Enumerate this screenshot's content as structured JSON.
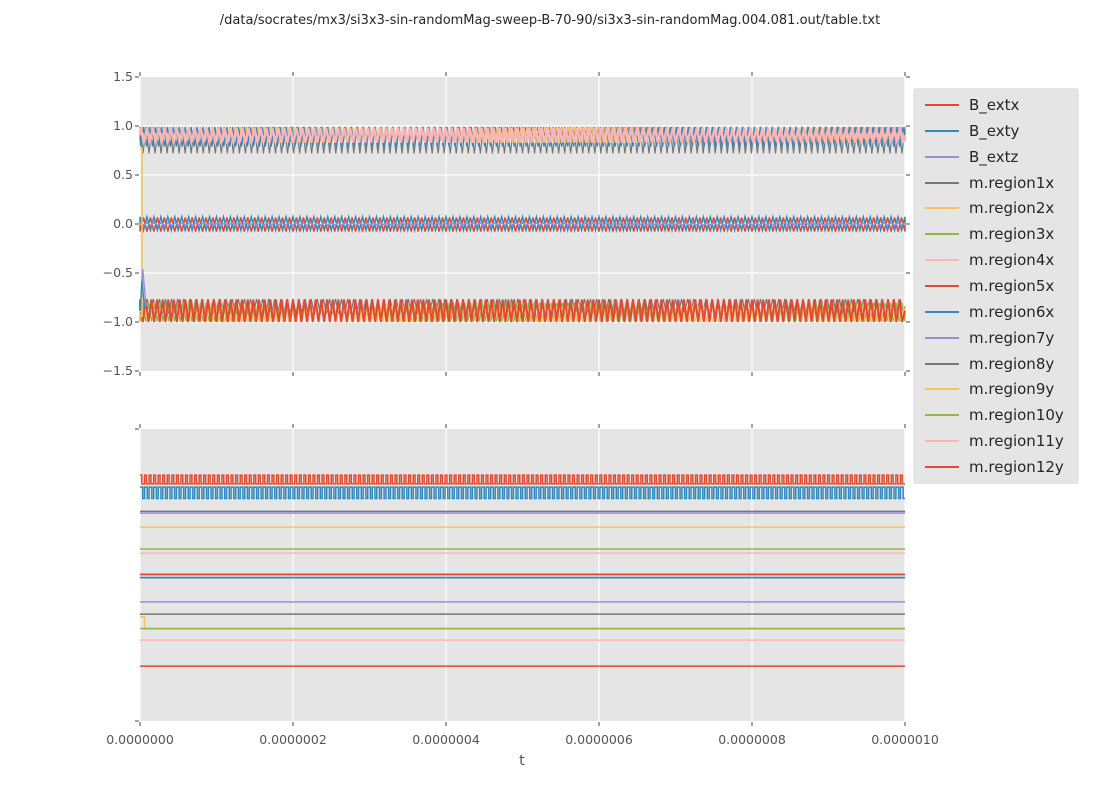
{
  "title": "/data/socrates/mx3/si3x3-sin-randomMag-sweep-B-70-90/si3x3-sin-randomMag.004.081.out/table.txt",
  "xlabel": "t",
  "style_colors": {
    "plot_background": "#E5E5E5",
    "grid": "#FFFFFF",
    "tick": "#555555",
    "text": "#262626",
    "palette": {
      "red": "#E24A33",
      "blue": "#348ABD",
      "purple": "#988ED5",
      "gray": "#777777",
      "orange": "#FBC15E",
      "green": "#8EBA42",
      "pink": "#FFB5B8"
    }
  },
  "legend": {
    "items": [
      {
        "label": "B_extx",
        "color": "#E24A33"
      },
      {
        "label": "B_exty",
        "color": "#348ABD"
      },
      {
        "label": "B_extz",
        "color": "#988ED5"
      },
      {
        "label": "m.region1x",
        "color": "#777777"
      },
      {
        "label": "m.region2x",
        "color": "#FBC15E"
      },
      {
        "label": "m.region3x",
        "color": "#8EBA42"
      },
      {
        "label": "m.region4x",
        "color": "#FFB5B8"
      },
      {
        "label": "m.region5x",
        "color": "#E24A33"
      },
      {
        "label": "m.region6x",
        "color": "#348ABD"
      },
      {
        "label": "m.region7y",
        "color": "#988ED5"
      },
      {
        "label": "m.region8y",
        "color": "#777777"
      },
      {
        "label": "m.region9y",
        "color": "#FBC15E"
      },
      {
        "label": "m.region10y",
        "color": "#8EBA42"
      },
      {
        "label": "m.region11y",
        "color": "#FFB5B8"
      },
      {
        "label": "m.region12y",
        "color": "#E24A33"
      }
    ]
  },
  "chart_data": [
    {
      "type": "line",
      "subplot": "top",
      "xlim": [
        0,
        1e-06
      ],
      "ylim": [
        -1.5,
        1.5
      ],
      "xticks": [
        "0.0000000",
        "0.0000002",
        "0.0000004",
        "0.0000006",
        "0.0000008",
        "0.0000010"
      ],
      "yticks": [
        "1.5",
        "1.0",
        "0.5",
        "0.0",
        "−0.5",
        "−1.0",
        "−1.5"
      ],
      "grid": true,
      "legend_position": "outside-right",
      "series": [
        {
          "name": "m.region1x",
          "band": "upper",
          "color": "#777777",
          "shape": "zigzag",
          "center": 0.855,
          "amplitude": 0.135,
          "cycles": 127,
          "phase": 0.0,
          "width": 1.2
        },
        {
          "name": "m.region2x",
          "band": "upper",
          "color": "#FBC15E",
          "shape": "zigzag",
          "center": 0.91,
          "amplitude": 0.085,
          "cycles": 131,
          "phase": 0.3,
          "width": 1.2
        },
        {
          "name": "m.region6x",
          "band": "upper",
          "color": "#348ABD",
          "shape": "zigzag",
          "center": 0.89,
          "amplitude": 0.1,
          "cycles": 129,
          "phase": 0.62,
          "width": 1.4
        },
        {
          "name": "m.region4x",
          "band": "upper",
          "color": "#FFB5B8",
          "shape": "zigzag",
          "center": 0.905,
          "amplitude": 0.075,
          "cycles": 128,
          "phase": 0.15,
          "width": 2.4
        },
        {
          "name": "m.region8y",
          "band": "lower",
          "color": "#777777",
          "shape": "zigzag",
          "center": -0.84,
          "amplitude": 0.075,
          "cycles": 126,
          "phase": 0.2,
          "width": 1.2
        },
        {
          "name": "m.region3x",
          "band": "lower",
          "color": "#8EBA42",
          "shape": "zigzag",
          "center": -0.9,
          "amplitude": 0.095,
          "cycles": 133,
          "phase": 0.5,
          "width": 1.2
        },
        {
          "name": "m.region9y",
          "band": "lower",
          "color": "#FBC15E",
          "shape": "zigzag",
          "center": -0.92,
          "amplitude": 0.08,
          "cycles": 130,
          "phase": 0.8,
          "width": 1.2
        },
        {
          "name": "B_extx",
          "band": "lower",
          "color": "#E24A33",
          "shape": "zigzag",
          "center": -0.885,
          "amplitude": 0.115,
          "cycles": 135,
          "phase": 0.0,
          "width": 2.0
        },
        {
          "name": "m.region5x",
          "band": "middle",
          "color": "#E24A33",
          "shape": "zigzag",
          "center": -0.005,
          "amplitude": 0.072,
          "cycles": 110,
          "phase": 0.5,
          "width": 1.5
        },
        {
          "name": "B_exty",
          "band": "middle",
          "color": "#348ABD",
          "shape": "zigzag",
          "center": 0.005,
          "amplitude": 0.068,
          "cycles": 110,
          "phase": 0.0,
          "width": 1.5
        },
        {
          "name": "B_extz",
          "band": "middle",
          "color": "#988ED5",
          "shape": "zigzag",
          "center": 0.0,
          "amplitude": 0.012,
          "cycles": 108,
          "phase": 0.0,
          "width": 1.5
        },
        {
          "name": "m.region2x initial transient",
          "color": "#FBC15E",
          "shape": "poly",
          "width": 1.6,
          "points": [
            [
              0.0,
              0.77
            ],
            [
              0.0026,
              0.77
            ],
            [
              0.0026,
              -0.95
            ]
          ]
        },
        {
          "name": "m.region7y initial transient",
          "color": "#988ED5",
          "shape": "poly",
          "width": 1.4,
          "points": [
            [
              0.0005,
              -0.86
            ],
            [
              0.0035,
              -0.46
            ],
            [
              0.008,
              -0.84
            ]
          ]
        },
        {
          "name": "m.region6x initial transient",
          "color": "#348ABD",
          "shape": "poly",
          "width": 1.4,
          "points": [
            [
              0.0005,
              -0.88
            ],
            [
              0.0025,
              -0.58
            ],
            [
              0.006,
              -0.86
            ]
          ]
        }
      ]
    },
    {
      "type": "line",
      "subplot": "bottom",
      "xlim": [
        0,
        1e-06
      ],
      "y_axis": "unlabeled (no tick labels); levels given as fraction of plot height from top",
      "xticks": [
        "0.0000000",
        "0.0000002",
        "0.0000004",
        "0.0000006",
        "0.0000008",
        "0.0000010"
      ],
      "grid": "vertical-only",
      "series": [
        {
          "name": "B_extx",
          "color": "#E24A33",
          "shape": "square",
          "hi": 0.158,
          "lo": 0.188,
          "cycles": 168,
          "duty_hi": 0.4,
          "width": 1.5
        },
        {
          "name": "B_exty",
          "color": "#348ABD",
          "shape": "square",
          "hi": 0.199,
          "lo": 0.238,
          "cycles": 168,
          "duty_hi": 0.6,
          "width": 1.5
        },
        {
          "name": "m.region1x",
          "color": "#777777",
          "shape": "flat",
          "level": 0.282,
          "width": 1.4
        },
        {
          "name": "B_extz",
          "color": "#988ED5",
          "shape": "flat",
          "level": 0.288,
          "width": 1.6
        },
        {
          "name": "m.region2x",
          "color": "#FBC15E",
          "shape": "flat",
          "level": 0.336,
          "width": 1.5
        },
        {
          "name": "m.region3x",
          "color": "#8EBA42",
          "shape": "flat",
          "level": 0.411,
          "width": 1.5
        },
        {
          "name": "m.region4x",
          "color": "#FFB5B8",
          "shape": "flat",
          "level": 0.425,
          "width": 1.5
        },
        {
          "name": "m.region5x",
          "color": "#E24A33",
          "shape": "flat",
          "level": 0.498,
          "width": 1.8
        },
        {
          "name": "m.region6x",
          "color": "#348ABD",
          "shape": "flat",
          "level": 0.509,
          "width": 1.8
        },
        {
          "name": "m.region7y",
          "color": "#988ED5",
          "shape": "flat",
          "level": 0.592,
          "width": 1.5
        },
        {
          "name": "m.region8y",
          "color": "#777777",
          "shape": "flat",
          "level": 0.634,
          "width": 1.5
        },
        {
          "name": "m.region9y",
          "color": "#FBC15E",
          "shape": "poly",
          "width": 1.5,
          "points": [
            [
              0.0,
              0.644
            ],
            [
              0.006,
              0.644
            ],
            [
              0.006,
              0.685
            ],
            [
              1.0,
              0.685
            ]
          ]
        },
        {
          "name": "m.region10y",
          "color": "#8EBA42",
          "shape": "flat",
          "level": 0.683,
          "width": 1.5
        },
        {
          "name": "m.region11y",
          "color": "#FFB5B8",
          "shape": "flat",
          "level": 0.723,
          "width": 1.5
        },
        {
          "name": "m.region12y",
          "color": "#E24A33",
          "shape": "flat",
          "level": 0.812,
          "width": 1.5
        }
      ]
    }
  ]
}
